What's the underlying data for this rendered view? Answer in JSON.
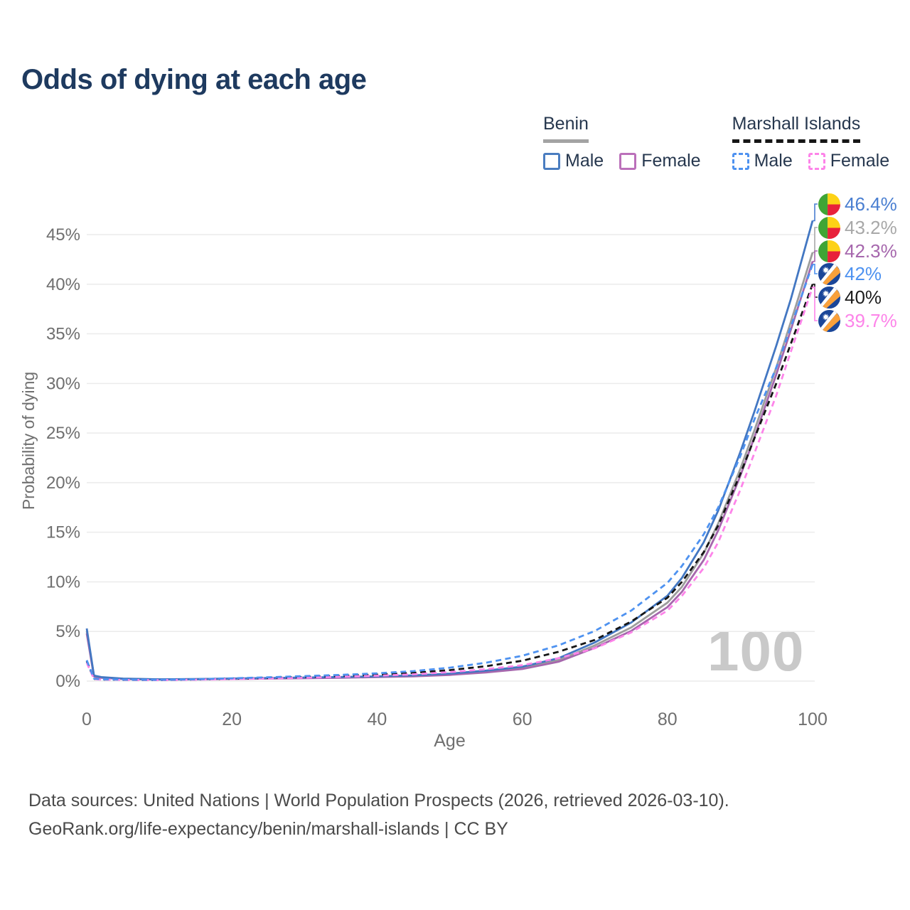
{
  "title": "Odds of dying at each age",
  "legend": {
    "groups": [
      {
        "name": "Benin",
        "line_style": "solid",
        "underline_color": "#a3a3a3",
        "items": [
          {
            "label": "Male",
            "color": "#4a7dc0",
            "dashed": false
          },
          {
            "label": "Female",
            "color": "#bb70ba",
            "dashed": false
          }
        ]
      },
      {
        "name": "Marshall Islands",
        "line_style": "dashed",
        "underline_color": "#161616",
        "items": [
          {
            "label": "Male",
            "color": "#4e92f0",
            "dashed": true
          },
          {
            "label": "Female",
            "color": "#fd84e9",
            "dashed": true
          }
        ]
      }
    ]
  },
  "chart_data": {
    "type": "line",
    "title": "Odds of dying at each age",
    "xlabel": "Age",
    "ylabel": "Probability of dying",
    "xlim": [
      0,
      100
    ],
    "ylim": [
      0,
      48.5
    ],
    "x_ticks": [
      0,
      20,
      40,
      60,
      80,
      100
    ],
    "y_ticks": [
      0,
      5,
      10,
      15,
      20,
      25,
      30,
      35,
      40,
      45
    ],
    "y_tick_suffix": "%",
    "grid": true,
    "x": [
      0,
      1,
      2,
      5,
      10,
      15,
      20,
      25,
      30,
      35,
      40,
      45,
      50,
      55,
      60,
      65,
      70,
      75,
      80,
      82,
      85,
      87,
      90,
      92,
      95,
      97,
      100
    ],
    "series": [
      {
        "name": "Benin Both sexes",
        "country": "Benin",
        "flag": "benin",
        "color": "#9d9d9d",
        "dash": "solid",
        "end_label": "43.2%",
        "end_label_color": "#a8a8a8",
        "end_value": 43.2,
        "values": [
          5.05,
          0.5,
          0.37,
          0.23,
          0.17,
          0.19,
          0.23,
          0.28,
          0.32,
          0.37,
          0.43,
          0.52,
          0.68,
          0.95,
          1.32,
          2.1,
          3.6,
          5.4,
          7.9,
          9.5,
          12.9,
          15.9,
          21.3,
          25.3,
          31.6,
          36.2,
          43.2
        ]
      },
      {
        "name": "Benin Female",
        "country": "Benin",
        "flag": "benin",
        "color": "#a667ad",
        "dash": "solid",
        "end_label": "42.3%",
        "end_label_color": "#a667ad",
        "end_value": 42.3,
        "values": [
          4.8,
          0.46,
          0.34,
          0.21,
          0.16,
          0.17,
          0.21,
          0.25,
          0.29,
          0.34,
          0.4,
          0.48,
          0.62,
          0.87,
          1.22,
          1.95,
          3.35,
          5.05,
          7.45,
          9.0,
          12.2,
          15.2,
          20.6,
          24.6,
          30.9,
          35.4,
          42.3
        ]
      },
      {
        "name": "Benin Male",
        "country": "Benin",
        "flag": "benin",
        "color": "#4377c2",
        "dash": "solid",
        "end_label": "46.4%",
        "end_label_color": "#4a7fd1",
        "end_value": 46.4,
        "values": [
          5.3,
          0.55,
          0.4,
          0.25,
          0.18,
          0.2,
          0.26,
          0.31,
          0.36,
          0.41,
          0.47,
          0.57,
          0.75,
          1.05,
          1.45,
          2.3,
          3.9,
          5.9,
          8.6,
          10.4,
          14.0,
          17.2,
          23.0,
          27.2,
          33.8,
          38.5,
          46.4
        ]
      },
      {
        "name": "Marshall Islands Both sexes",
        "country": "Marshall Islands",
        "flag": "marshall",
        "color": "#161616",
        "dash": "dashed",
        "end_label": "40%",
        "end_label_color": "#1c1c1c",
        "end_value": 40.0,
        "values": [
          2.0,
          0.22,
          0.16,
          0.13,
          0.11,
          0.16,
          0.24,
          0.32,
          0.42,
          0.52,
          0.65,
          0.83,
          1.1,
          1.5,
          2.05,
          2.95,
          4.15,
          6.0,
          8.4,
          10.0,
          13.0,
          15.7,
          20.8,
          24.5,
          30.0,
          34.0,
          40.0
        ]
      },
      {
        "name": "Marshall Islands Female",
        "country": "Marshall Islands",
        "flag": "marshall",
        "color": "#fd84e9",
        "dash": "dashed",
        "end_label": "39.7%",
        "end_label_color": "#fd84e9",
        "end_value": 39.7,
        "values": [
          1.85,
          0.2,
          0.15,
          0.12,
          0.1,
          0.14,
          0.2,
          0.27,
          0.34,
          0.43,
          0.54,
          0.68,
          0.9,
          1.2,
          1.6,
          2.3,
          3.3,
          4.9,
          7.1,
          8.6,
          11.4,
          14.0,
          19.2,
          23.0,
          28.8,
          33.2,
          39.7
        ]
      },
      {
        "name": "Marshall Islands Male",
        "country": "Marshall Islands",
        "flag": "marshall",
        "color": "#4e92f0",
        "dash": "dashed",
        "end_label": "42%",
        "end_label_color": "#4e92f0",
        "end_value": 42.0,
        "values": [
          2.1,
          0.25,
          0.18,
          0.14,
          0.12,
          0.18,
          0.28,
          0.38,
          0.5,
          0.62,
          0.78,
          1.0,
          1.35,
          1.85,
          2.55,
          3.6,
          5.05,
          7.1,
          9.9,
          11.6,
          14.8,
          17.5,
          22.6,
          26.4,
          31.6,
          35.7,
          42.0
        ]
      }
    ],
    "end_label_order_top_to_bottom": [
      "46.4%",
      "43.2%",
      "42.3%",
      "42%",
      "40%",
      "39.7%"
    ]
  },
  "flags": {
    "benin": {
      "green": "#3fa535",
      "yellow": "#fdd216",
      "red": "#e8213a"
    },
    "marshall": {
      "blue": "#1a4699",
      "orange": "#f9a03a",
      "white": "#ffffff"
    }
  },
  "watermark": "100",
  "axis_color": "#6f6f6f",
  "grid_color": "#ebebeb",
  "footer": {
    "line1": "Data sources: United Nations | World Population Prospects (2026, retrieved 2026-03-10).",
    "line2": "GeoRank.org/life-expectancy/benin/marshall-islands | CC BY"
  }
}
